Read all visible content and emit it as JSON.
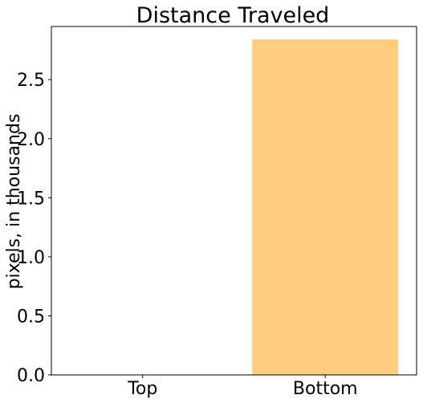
{
  "chart_data": {
    "type": "bar",
    "title": "Distance Traveled",
    "xlabel": "",
    "ylabel": "pixels, in thousands",
    "categories": [
      "Top",
      "Bottom"
    ],
    "values": [
      0,
      2.84
    ],
    "ylim": [
      0,
      2.95
    ],
    "yticks": [
      "0.0",
      "0.5",
      "1.0",
      "1.5",
      "2.0",
      "2.5"
    ],
    "ytick_values": [
      0,
      0.5,
      1.0,
      1.5,
      2.0,
      2.5
    ],
    "grid": false,
    "bar_color": "#fecd7f"
  }
}
